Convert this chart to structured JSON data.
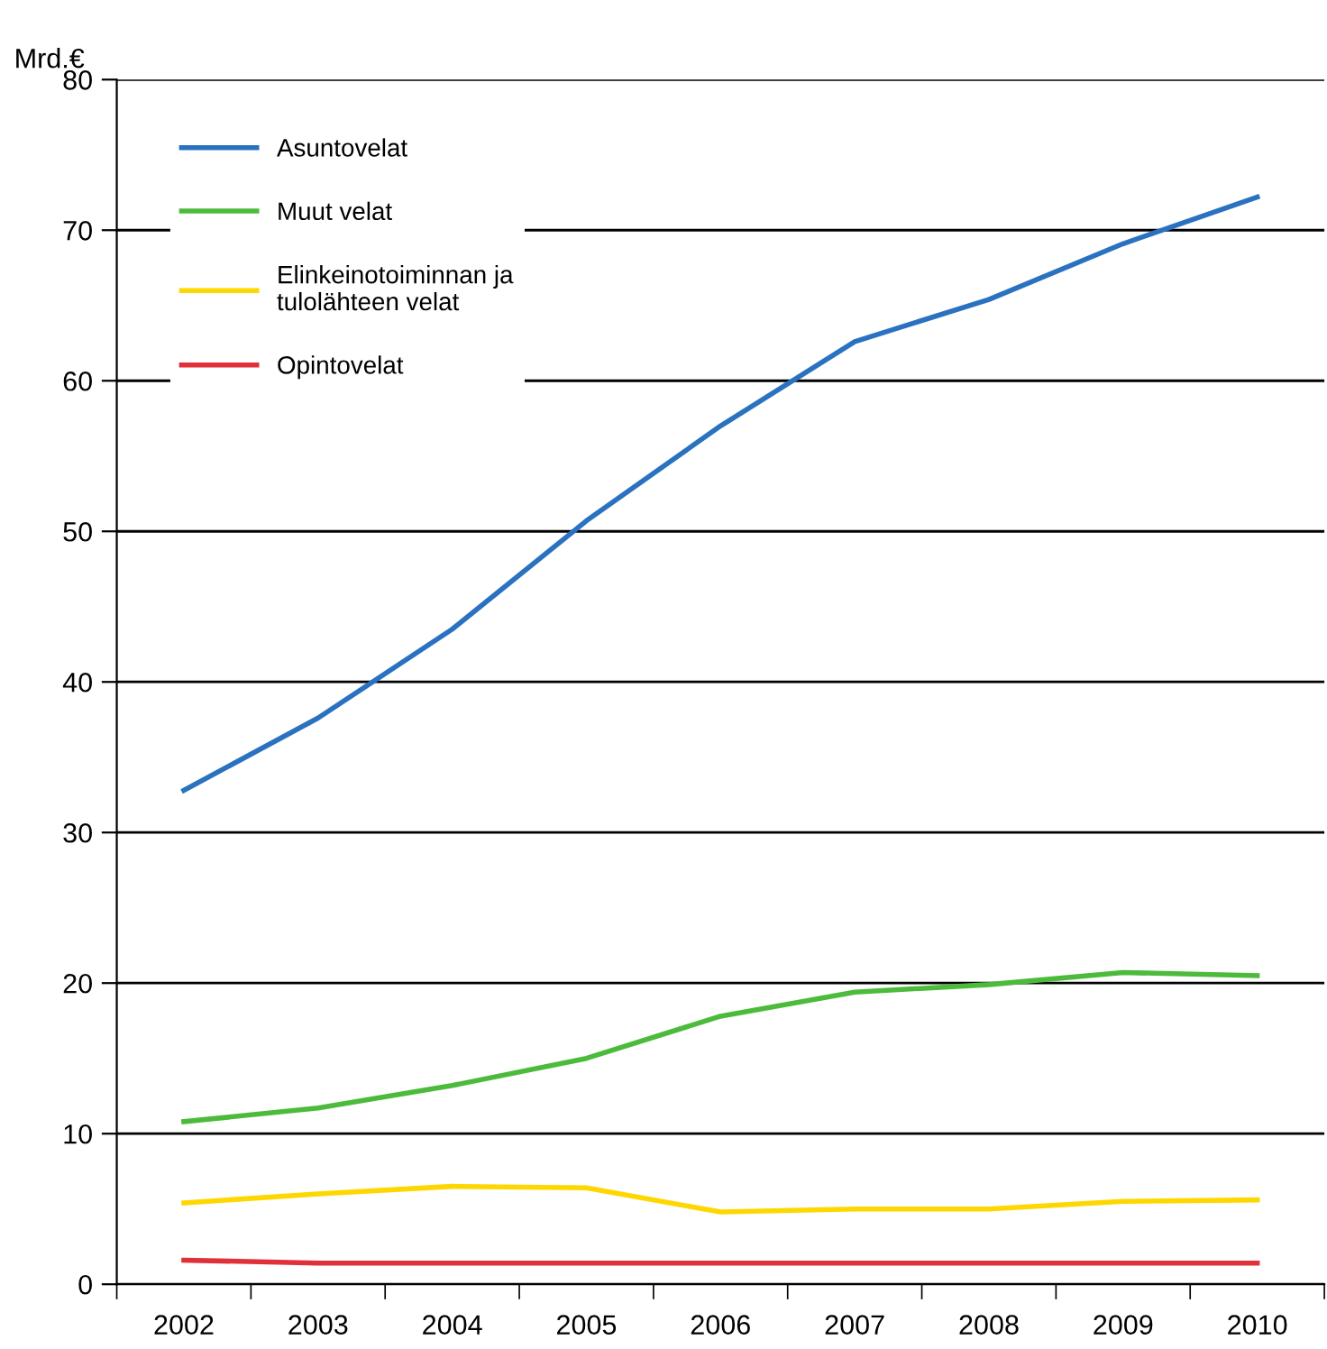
{
  "chart_data": {
    "type": "line",
    "ylabel": "Mrd.€",
    "categories": [
      "2002",
      "2003",
      "2004",
      "2005",
      "2006",
      "2007",
      "2008",
      "2009",
      "2010"
    ],
    "series": [
      {
        "name": "Asuntovelat",
        "color": "#2a72c0",
        "values": [
          32.8,
          37.6,
          43.5,
          50.7,
          57.0,
          62.6,
          65.4,
          69.1,
          72.2
        ]
      },
      {
        "name": "Muut velat",
        "color": "#4cbb3c",
        "values": [
          10.8,
          11.7,
          13.2,
          15.0,
          17.8,
          19.4,
          19.9,
          20.7,
          20.5
        ]
      },
      {
        "name": "Elinkeinotoiminnan ja\ntulolähteen velat",
        "color": "#ffd700",
        "values": [
          5.4,
          6.0,
          6.5,
          6.4,
          4.8,
          5.0,
          5.0,
          5.5,
          5.6
        ]
      },
      {
        "name": "Opintovelat",
        "color": "#e0303a",
        "values": [
          1.6,
          1.4,
          1.4,
          1.4,
          1.4,
          1.4,
          1.4,
          1.4,
          1.4
        ]
      }
    ],
    "ylim": [
      0,
      80
    ],
    "yticks": [
      0,
      10,
      20,
      30,
      40,
      50,
      60,
      70,
      80
    ],
    "grid": "y",
    "legend": "top left",
    "marker": "none",
    "line_style": "solid"
  }
}
